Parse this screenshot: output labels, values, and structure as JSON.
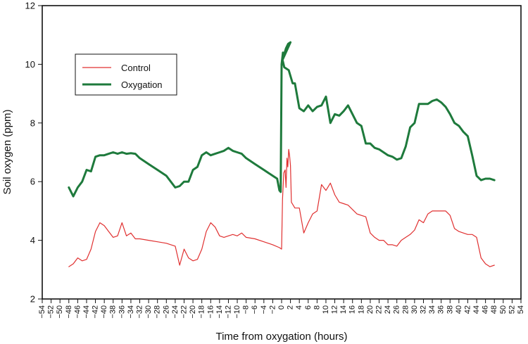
{
  "chart_data": {
    "type": "line",
    "title": "",
    "xlabel": "Time from oxygation (hours)",
    "ylabel": "Soil oxygen (ppm)",
    "xlim": [
      -54,
      54
    ],
    "ylim": [
      2,
      12
    ],
    "xticks": [
      -54,
      -52,
      -50,
      -48,
      -46,
      -44,
      -42,
      -40,
      -38,
      -36,
      -34,
      -32,
      -30,
      -28,
      -26,
      -24,
      -22,
      -20,
      -18,
      -16,
      -14,
      -12,
      -10,
      -8,
      -6,
      -4,
      -2,
      0,
      2,
      4,
      6,
      8,
      10,
      12,
      14,
      16,
      18,
      20,
      22,
      24,
      26,
      28,
      30,
      32,
      34,
      36,
      38,
      40,
      42,
      44,
      46,
      48,
      50,
      52,
      54
    ],
    "yticks": [
      2,
      4,
      6,
      8,
      10,
      12
    ],
    "grid": false,
    "legend": "upper-left, inside plot",
    "series": [
      {
        "name": "Control",
        "color": "#e03030",
        "points": [
          [
            -48,
            3.1
          ],
          [
            -47,
            3.2
          ],
          [
            -46,
            3.4
          ],
          [
            -45,
            3.3
          ],
          [
            -44,
            3.35
          ],
          [
            -43,
            3.7
          ],
          [
            -42,
            4.3
          ],
          [
            -41,
            4.6
          ],
          [
            -40,
            4.5
          ],
          [
            -39,
            4.3
          ],
          [
            -38,
            4.1
          ],
          [
            -37,
            4.15
          ],
          [
            -36,
            4.6
          ],
          [
            -35,
            4.15
          ],
          [
            -34,
            4.25
          ],
          [
            -33,
            4.05
          ],
          [
            -32,
            4.05
          ],
          [
            -30,
            4.0
          ],
          [
            -28,
            3.95
          ],
          [
            -26,
            3.9
          ],
          [
            -24,
            3.8
          ],
          [
            -23,
            3.15
          ],
          [
            -22,
            3.7
          ],
          [
            -21,
            3.4
          ],
          [
            -20,
            3.3
          ],
          [
            -19,
            3.35
          ],
          [
            -18,
            3.7
          ],
          [
            -17,
            4.3
          ],
          [
            -16,
            4.6
          ],
          [
            -15,
            4.45
          ],
          [
            -14,
            4.15
          ],
          [
            -13,
            4.1
          ],
          [
            -12,
            4.15
          ],
          [
            -11,
            4.2
          ],
          [
            -10,
            4.15
          ],
          [
            -9,
            4.25
          ],
          [
            -8,
            4.1
          ],
          [
            -6,
            4.05
          ],
          [
            -4,
            3.95
          ],
          [
            -2,
            3.85
          ],
          [
            -0.5,
            3.75
          ],
          [
            0,
            3.7
          ],
          [
            0.2,
            5.4
          ],
          [
            0.5,
            6.3
          ],
          [
            0.8,
            6.4
          ],
          [
            1,
            5.8
          ],
          [
            1.2,
            6.8
          ],
          [
            1.4,
            6.5
          ],
          [
            1.6,
            7.1
          ],
          [
            1.8,
            6.9
          ],
          [
            2,
            6.55
          ],
          [
            2.2,
            5.3
          ],
          [
            3,
            5.1
          ],
          [
            4,
            5.1
          ],
          [
            5,
            4.25
          ],
          [
            6,
            4.6
          ],
          [
            7,
            4.9
          ],
          [
            8,
            5.0
          ],
          [
            9,
            5.9
          ],
          [
            10,
            5.7
          ],
          [
            11,
            5.95
          ],
          [
            12,
            5.55
          ],
          [
            13,
            5.3
          ],
          [
            14,
            5.25
          ],
          [
            15,
            5.2
          ],
          [
            16,
            5.05
          ],
          [
            17,
            4.9
          ],
          [
            18,
            4.85
          ],
          [
            19,
            4.8
          ],
          [
            20,
            4.25
          ],
          [
            21,
            4.1
          ],
          [
            22,
            4.0
          ],
          [
            23,
            4.0
          ],
          [
            24,
            3.85
          ],
          [
            25,
            3.85
          ],
          [
            26,
            3.8
          ],
          [
            27,
            4.0
          ],
          [
            28,
            4.1
          ],
          [
            29,
            4.2
          ],
          [
            30,
            4.35
          ],
          [
            31,
            4.7
          ],
          [
            32,
            4.6
          ],
          [
            33,
            4.9
          ],
          [
            34,
            5.0
          ],
          [
            35,
            5.0
          ],
          [
            36,
            5.0
          ],
          [
            37,
            5.0
          ],
          [
            38,
            4.85
          ],
          [
            39,
            4.4
          ],
          [
            40,
            4.3
          ],
          [
            41,
            4.25
          ],
          [
            42,
            4.2
          ],
          [
            43,
            4.2
          ],
          [
            44,
            4.1
          ],
          [
            45,
            3.4
          ],
          [
            46,
            3.2
          ],
          [
            47,
            3.1
          ],
          [
            48,
            3.15
          ]
        ]
      },
      {
        "name": "Oxygation",
        "color": "#1e7a3c",
        "points": [
          [
            -48,
            5.8
          ],
          [
            -47,
            5.5
          ],
          [
            -46,
            5.8
          ],
          [
            -45,
            6.0
          ],
          [
            -44,
            6.4
          ],
          [
            -43,
            6.35
          ],
          [
            -42,
            6.85
          ],
          [
            -41,
            6.9
          ],
          [
            -40,
            6.9
          ],
          [
            -39,
            6.95
          ],
          [
            -38,
            7.0
          ],
          [
            -37,
            6.95
          ],
          [
            -36,
            7.0
          ],
          [
            -35,
            6.95
          ],
          [
            -34,
            6.97
          ],
          [
            -33,
            6.95
          ],
          [
            -32,
            6.8
          ],
          [
            -30,
            6.6
          ],
          [
            -28,
            6.4
          ],
          [
            -26,
            6.2
          ],
          [
            -24,
            5.8
          ],
          [
            -23,
            5.85
          ],
          [
            -22,
            6.0
          ],
          [
            -21,
            6.0
          ],
          [
            -20,
            6.4
          ],
          [
            -19,
            6.5
          ],
          [
            -18,
            6.9
          ],
          [
            -17,
            7.0
          ],
          [
            -16,
            6.9
          ],
          [
            -15,
            6.95
          ],
          [
            -14,
            7.0
          ],
          [
            -13,
            7.05
          ],
          [
            -12,
            7.15
          ],
          [
            -11,
            7.05
          ],
          [
            -10,
            7.0
          ],
          [
            -9,
            6.95
          ],
          [
            -8,
            6.8
          ],
          [
            -6,
            6.6
          ],
          [
            -4,
            6.4
          ],
          [
            -2,
            6.2
          ],
          [
            -1,
            6.1
          ],
          [
            -0.5,
            5.7
          ],
          [
            -0.2,
            5.65
          ],
          [
            0,
            10.0
          ],
          [
            0.3,
            10.4
          ],
          [
            0.5,
            10.3
          ],
          [
            1,
            10.55
          ],
          [
            1.5,
            10.7
          ],
          [
            2,
            10.75
          ],
          [
            0.2,
            10.15
          ],
          [
            0.6,
            9.9
          ],
          [
            1.6,
            9.8
          ],
          [
            2.5,
            9.35
          ],
          [
            3,
            9.35
          ],
          [
            4,
            8.5
          ],
          [
            5,
            8.4
          ],
          [
            6,
            8.6
          ],
          [
            7,
            8.4
          ],
          [
            8,
            8.55
          ],
          [
            9,
            8.6
          ],
          [
            10,
            8.9
          ],
          [
            11,
            8.0
          ],
          [
            12,
            8.3
          ],
          [
            13,
            8.25
          ],
          [
            14,
            8.4
          ],
          [
            15,
            8.6
          ],
          [
            16,
            8.3
          ],
          [
            17,
            8.0
          ],
          [
            18,
            7.9
          ],
          [
            19,
            7.3
          ],
          [
            20,
            7.3
          ],
          [
            21,
            7.15
          ],
          [
            22,
            7.1
          ],
          [
            23,
            7.0
          ],
          [
            24,
            6.9
          ],
          [
            25,
            6.85
          ],
          [
            26,
            6.75
          ],
          [
            27,
            6.8
          ],
          [
            28,
            7.2
          ],
          [
            29,
            7.85
          ],
          [
            30,
            8.0
          ],
          [
            31,
            8.65
          ],
          [
            32,
            8.65
          ],
          [
            33,
            8.65
          ],
          [
            34,
            8.75
          ],
          [
            35,
            8.8
          ],
          [
            36,
            8.7
          ],
          [
            37,
            8.55
          ],
          [
            38,
            8.3
          ],
          [
            39,
            8.0
          ],
          [
            40,
            7.9
          ],
          [
            41,
            7.7
          ],
          [
            42,
            7.55
          ],
          [
            43,
            6.9
          ],
          [
            44,
            6.2
          ],
          [
            45,
            6.05
          ],
          [
            46,
            6.1
          ],
          [
            47,
            6.1
          ],
          [
            48,
            6.05
          ]
        ]
      }
    ]
  }
}
